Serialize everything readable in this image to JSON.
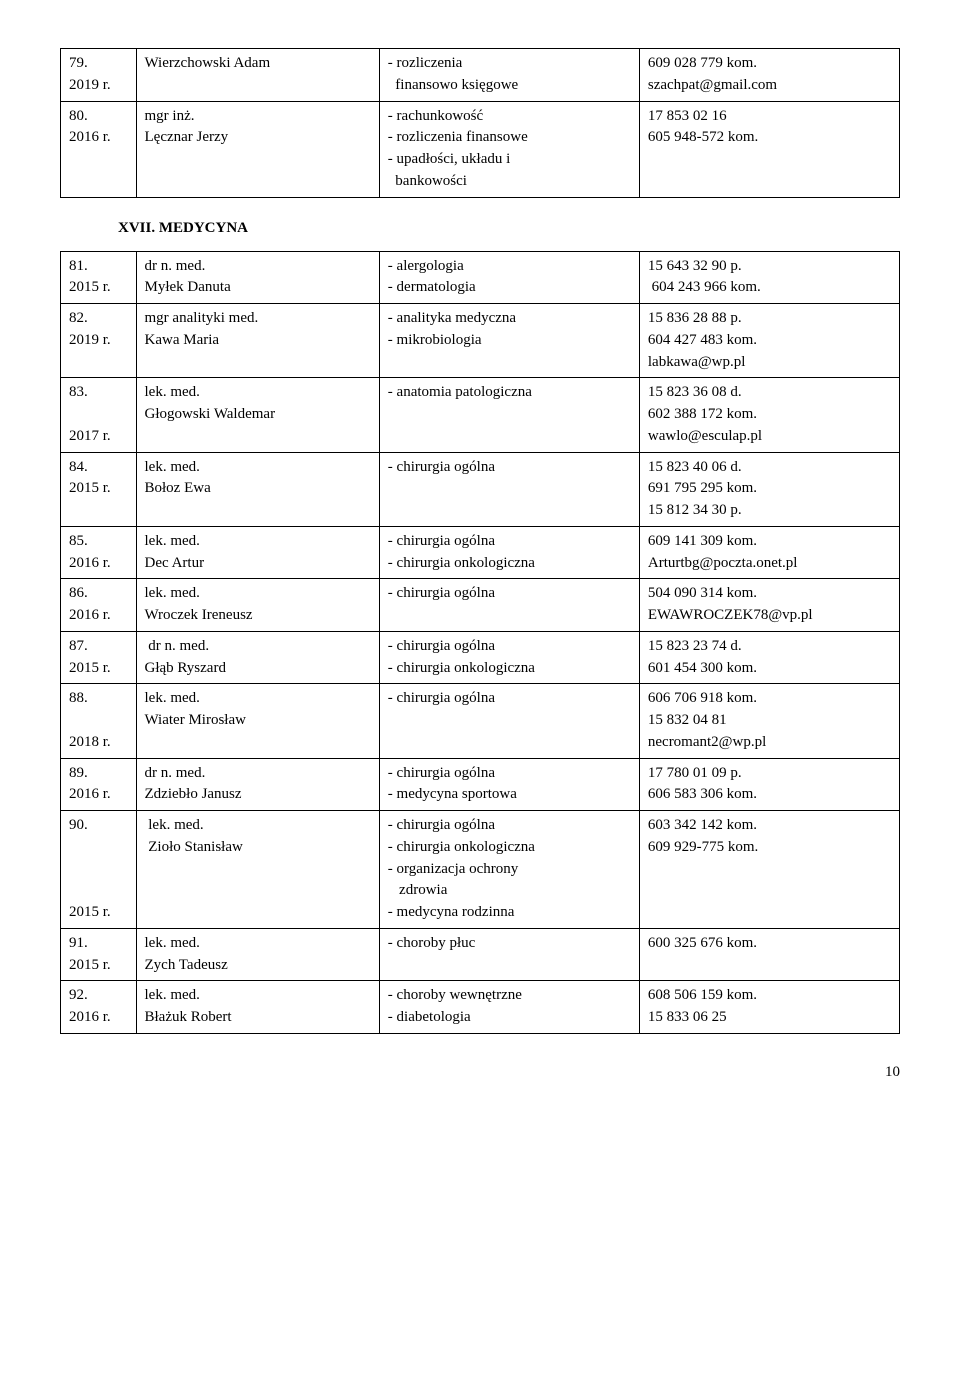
{
  "tableTop": {
    "rows": [
      {
        "c1": [
          "79.",
          "2019 r."
        ],
        "c2": [
          "Wierzchowski Adam"
        ],
        "c3": [
          "- rozliczenia",
          "  finansowo księgowe"
        ],
        "c4": [
          "609 028 779 kom.",
          "szachpat@gmail.com"
        ]
      },
      {
        "c1": [
          "80.",
          "2016 r."
        ],
        "c2": [
          "mgr inż.",
          "Lęcznar Jerzy"
        ],
        "c3": [
          "- rachunkowość",
          "- rozliczenia finansowe",
          "- upadłości, układu i",
          "  bankowości"
        ],
        "c4": [
          "17 853 02 16",
          "605 948-572 kom."
        ]
      }
    ]
  },
  "sectionHeading": "XVII. MEDYCYNA",
  "tableMain": {
    "rows": [
      {
        "c1": [
          "81.",
          "2015 r."
        ],
        "c2": [
          "dr n. med.",
          "Myłek Danuta"
        ],
        "c3": [
          "- alergologia",
          "- dermatologia"
        ],
        "c4": [
          "15  643 32 90 p.",
          " 604 243 966 kom."
        ]
      },
      {
        "c1": [
          "82.",
          "2019 r."
        ],
        "c2": [
          "mgr analityki med.",
          "Kawa Maria"
        ],
        "c3": [
          "- analityka medyczna",
          "- mikrobiologia"
        ],
        "c4": [
          "15 836 28 88 p.",
          "604 427 483 kom.",
          "labkawa@wp.pl"
        ]
      },
      {
        "c1": [
          "83.",
          "",
          "2017 r."
        ],
        "c2": [
          "lek. med.",
          "Głogowski Waldemar"
        ],
        "c3": [
          "- anatomia patologiczna"
        ],
        "c4": [
          "15 823 36 08 d.",
          "602 388 172 kom.",
          "wawlo@esculap.pl"
        ]
      },
      {
        "c1": [
          "84.",
          "2015 r."
        ],
        "c2": [
          "lek. med.",
          "Bołoz Ewa"
        ],
        "c3": [
          "- chirurgia ogólna"
        ],
        "c4": [
          "15  823 40 06 d.",
          "691 795 295 kom.",
          "15  812 34 30 p."
        ]
      },
      {
        "c1": [
          "85.",
          "2016 r."
        ],
        "c2": [
          "lek. med.",
          "Dec Artur"
        ],
        "c3": [
          "- chirurgia ogólna",
          "- chirurgia onkologiczna"
        ],
        "c4": [
          "609 141 309 kom.",
          "Arturtbg@poczta.onet.pl"
        ]
      },
      {
        "c1": [
          "86.",
          "2016 r."
        ],
        "c2": [
          "lek. med.",
          "Wroczek Ireneusz"
        ],
        "c3": [
          "- chirurgia ogólna"
        ],
        "c4": [
          "504 090 314 kom.",
          "EWAWROCZEK78@vp.pl"
        ]
      },
      {
        "c1": [
          "87.",
          "2015 r."
        ],
        "c2": [
          " dr n. med.",
          "Głąb Ryszard"
        ],
        "c3": [
          "- chirurgia ogólna",
          "- chirurgia onkologiczna"
        ],
        "c4": [
          "15 823 23 74 d.",
          "601 454 300 kom."
        ]
      },
      {
        "c1": [
          "88.",
          "",
          "2018 r."
        ],
        "c2": [
          "lek. med.",
          "Wiater Mirosław"
        ],
        "c3": [
          "- chirurgia ogólna"
        ],
        "c4": [
          "606 706 918 kom.",
          "15 832 04 81",
          "necromant2@wp.pl"
        ]
      },
      {
        "c1": [
          "89.",
          "2016 r."
        ],
        "c2": [
          "dr n. med.",
          "Zdziebło Janusz"
        ],
        "c3": [
          "- chirurgia ogólna",
          "- medycyna sportowa"
        ],
        "c4": [
          "17  780 01 09 p.",
          "606 583 306 kom."
        ]
      },
      {
        "c1": [
          "90.",
          "",
          "",
          "",
          "2015 r."
        ],
        "c2": [
          " lek. med.",
          " Zioło Stanisław"
        ],
        "c3": [
          "- chirurgia ogólna",
          "- chirurgia  onkologiczna",
          "- organizacja ochrony",
          "   zdrowia",
          "- medycyna rodzinna"
        ],
        "c4": [
          "603 342 142  kom.",
          "609 929-775 kom."
        ]
      },
      {
        "c1": [
          "91.",
          "2015 r."
        ],
        "c2": [
          "lek. med.",
          "Zych Tadeusz"
        ],
        "c3": [
          "- choroby płuc"
        ],
        "c4": [
          "600 325 676 kom."
        ]
      },
      {
        "c1": [
          "92.",
          "2016 r."
        ],
        "c2": [
          "lek. med.",
          "Błażuk Robert"
        ],
        "c3": [
          "- choroby wewnętrzne",
          "- diabetologia"
        ],
        "c4": [
          "608 506 159 kom.",
          "15 833 06 25"
        ]
      }
    ]
  },
  "pageNumber": "10"
}
